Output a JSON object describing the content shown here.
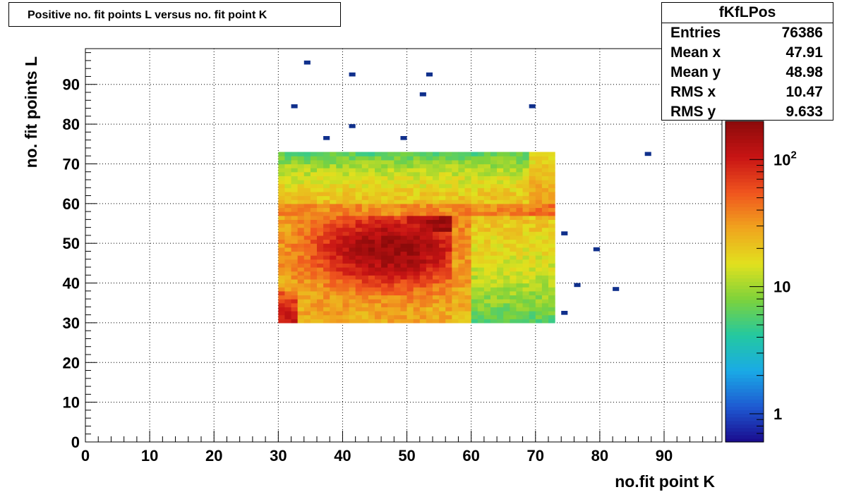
{
  "title": "Positive no. fit points L versus no. fit point K",
  "stats": {
    "name": "fKfLPos",
    "rows": [
      {
        "label": "Entries",
        "value": "76386"
      },
      {
        "label": "Mean x",
        "value": "47.91"
      },
      {
        "label": "Mean y",
        "value": "48.98"
      },
      {
        "label": "RMS x",
        "value": "10.47"
      },
      {
        "label": "RMS y",
        "value": "9.633"
      }
    ]
  },
  "chart_data": {
    "type": "heatmap",
    "xlabel": "no.fit point K",
    "ylabel": "no. fit points  L",
    "xlim": [
      0,
      99
    ],
    "ylim": [
      0,
      99
    ],
    "x_ticks": [
      0,
      10,
      20,
      30,
      40,
      50,
      60,
      70,
      80,
      90
    ],
    "y_ticks": [
      0,
      10,
      20,
      30,
      40,
      50,
      60,
      70,
      80,
      90
    ],
    "grid": true,
    "z_scale": "log",
    "zlim": [
      0.6,
      200
    ],
    "z_ticks": [
      {
        "value": 1,
        "label": "1"
      },
      {
        "value": 10,
        "label": "10"
      },
      {
        "value": 100,
        "label": "10",
        "sup": "2"
      }
    ],
    "colormap": [
      "#1a0a8c",
      "#1e5ad2",
      "#1aaae6",
      "#23c8a0",
      "#7dd23c",
      "#e1e11e",
      "#f0a51e",
      "#f0551e",
      "#c81414",
      "#8c0a0a"
    ],
    "regions": [
      {
        "x": [
          30,
          57
        ],
        "y": [
          30,
          57
        ],
        "z": 150
      },
      {
        "x": [
          57,
          73
        ],
        "y": [
          30,
          57
        ],
        "z": 9
      },
      {
        "x": [
          30,
          73
        ],
        "y": [
          57,
          73
        ],
        "z": 20
      }
    ],
    "peak": {
      "x": 47,
      "y": 48,
      "z": 180
    },
    "isolated_points": [
      {
        "x": 34,
        "y": 95,
        "z": 1
      },
      {
        "x": 41,
        "y": 92,
        "z": 1
      },
      {
        "x": 53,
        "y": 92,
        "z": 1
      },
      {
        "x": 52,
        "y": 87,
        "z": 1
      },
      {
        "x": 32,
        "y": 84,
        "z": 1
      },
      {
        "x": 69,
        "y": 84,
        "z": 1
      },
      {
        "x": 41,
        "y": 79,
        "z": 1
      },
      {
        "x": 37,
        "y": 76,
        "z": 1
      },
      {
        "x": 49,
        "y": 76,
        "z": 1
      },
      {
        "x": 87,
        "y": 72,
        "z": 1
      },
      {
        "x": 74,
        "y": 52,
        "z": 1
      },
      {
        "x": 79,
        "y": 48,
        "z": 1
      },
      {
        "x": 76,
        "y": 39,
        "z": 1
      },
      {
        "x": 82,
        "y": 38,
        "z": 1
      },
      {
        "x": 74,
        "y": 32,
        "z": 1
      }
    ]
  }
}
